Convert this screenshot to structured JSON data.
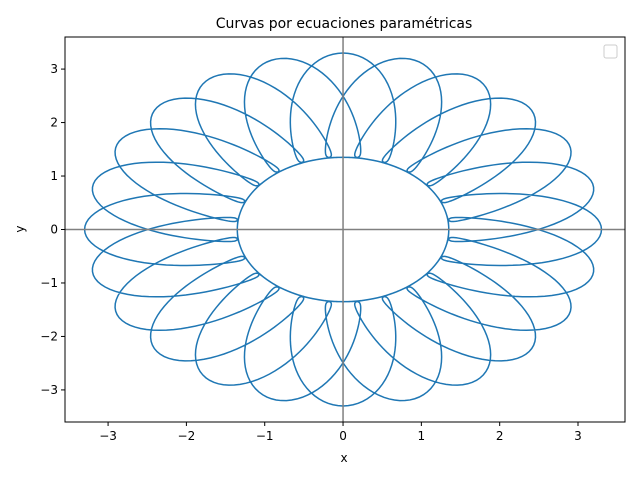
{
  "chart_data": {
    "type": "line",
    "title": "Curvas por ecuaciones paramétricas",
    "xlabel": "x",
    "ylabel": "y",
    "xlim": [
      -3.55,
      3.6
    ],
    "ylim": [
      -3.6,
      3.6
    ],
    "xticks": [
      -3,
      -2,
      -1,
      0,
      1,
      2,
      3
    ],
    "yticks": [
      -3,
      -2,
      -1,
      0,
      1,
      2,
      3
    ],
    "xtick_labels": [
      "−3",
      "−2",
      "−1",
      "0",
      "1",
      "2",
      "3"
    ],
    "ytick_labels": [
      "−3",
      "−2",
      "−1",
      "0",
      "1",
      "2",
      "3"
    ],
    "grid": false,
    "legend": "top-right",
    "series": [
      {
        "color": "#1f77b4",
        "parametric": {
          "x": "(3/2)*cos(t) + cos(12*t)^3 * cos(t)*... (star curve)",
          "t_range": [
            0,
            6.2832
          ],
          "inner_radius": 1.35,
          "outer_radius": 3.3,
          "spikes": 24
        }
      }
    ],
    "reference_lines": [
      {
        "orientation": "horizontal",
        "value": 0,
        "color": "#808080"
      },
      {
        "orientation": "vertical",
        "value": 0,
        "color": "#808080"
      }
    ]
  }
}
